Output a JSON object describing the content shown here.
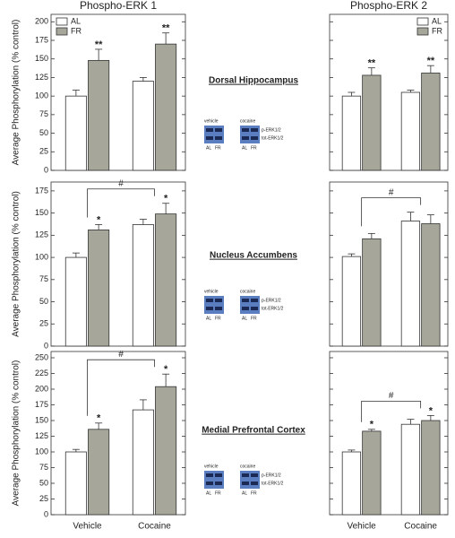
{
  "chart_data": [
    {
      "type": "bar",
      "title": "Phospho-ERK 1",
      "ylabel": "Average Phosphorylation (% control)",
      "ylim": [
        0,
        210
      ],
      "yticks": [
        0,
        25,
        50,
        75,
        100,
        125,
        150,
        175,
        200
      ],
      "ytick_labels": true,
      "legend": "upper left",
      "series": [
        {
          "name": "AL",
          "color": "#ffffff",
          "values": [
            100,
            120
          ],
          "errors": [
            8,
            5
          ]
        },
        {
          "name": "FR",
          "color": "#a6a69a",
          "values": [
            148,
            170
          ],
          "errors": [
            15,
            15
          ],
          "sig": [
            "**",
            "**"
          ]
        }
      ]
    },
    {
      "type": "bar",
      "title": "Phospho-ERK 2",
      "ylim": [
        0,
        210
      ],
      "yticks": [
        0,
        25,
        50,
        75,
        100,
        125,
        150,
        175,
        200
      ],
      "ytick_labels": false,
      "legend": "upper right",
      "series": [
        {
          "name": "AL",
          "color": "#ffffff",
          "values": [
            100,
            105
          ],
          "errors": [
            5,
            3
          ]
        },
        {
          "name": "FR",
          "color": "#a6a69a",
          "values": [
            128,
            131
          ],
          "errors": [
            10,
            10
          ],
          "sig": [
            "**",
            "**"
          ]
        }
      ]
    },
    {
      "type": "bar",
      "ylabel": "Average Phosphorylation (% control)",
      "ylim": [
        0,
        185
      ],
      "yticks": [
        0,
        25,
        50,
        75,
        100,
        125,
        150,
        175
      ],
      "ytick_labels": true,
      "bracket": "#",
      "series": [
        {
          "color": "#ffffff",
          "values": [
            100,
            137
          ],
          "errors": [
            5,
            6
          ]
        },
        {
          "color": "#a6a69a",
          "values": [
            131,
            149
          ],
          "errors": [
            6,
            12
          ],
          "sig": [
            "*",
            "*"
          ]
        }
      ]
    },
    {
      "type": "bar",
      "ylim": [
        0,
        185
      ],
      "yticks": [
        0,
        25,
        50,
        75,
        100,
        125,
        150,
        175
      ],
      "ytick_labels": false,
      "bracket": "#",
      "series": [
        {
          "color": "#ffffff",
          "values": [
            101,
            141
          ],
          "errors": [
            3,
            10
          ]
        },
        {
          "color": "#a6a69a",
          "values": [
            121,
            138
          ],
          "errors": [
            6,
            10
          ]
        }
      ]
    },
    {
      "type": "bar",
      "ylabel": "Average Phosphorylation (% control)",
      "categories": [
        "Vehicle",
        "Cocaine"
      ],
      "ylim": [
        0,
        260
      ],
      "yticks": [
        0,
        25,
        50,
        75,
        100,
        125,
        150,
        175,
        200,
        225,
        250
      ],
      "ytick_labels": true,
      "bracket": "#",
      "series": [
        {
          "color": "#ffffff",
          "values": [
            100,
            167
          ],
          "errors": [
            4,
            16
          ]
        },
        {
          "color": "#a6a69a",
          "values": [
            136,
            204
          ],
          "errors": [
            10,
            20
          ],
          "sig": [
            "*",
            "*"
          ]
        }
      ]
    },
    {
      "type": "bar",
      "categories": [
        "Vehicle",
        "Cocaine"
      ],
      "ylim": [
        0,
        260
      ],
      "yticks": [
        0,
        25,
        50,
        75,
        100,
        125,
        150,
        175,
        200,
        225,
        250
      ],
      "ytick_labels": false,
      "bracket": "#",
      "series": [
        {
          "color": "#ffffff",
          "values": [
            100,
            144
          ],
          "errors": [
            3,
            8
          ]
        },
        {
          "color": "#a6a69a",
          "values": [
            133,
            150
          ],
          "errors": [
            3,
            8
          ],
          "sig": [
            "*",
            "*"
          ]
        }
      ]
    }
  ],
  "regions": [
    "Dorsal Hippocampus",
    "Nucleus Accumbens",
    "Medial Prefrontal Cortex"
  ],
  "blots": [
    {
      "groups": [
        "vehicle",
        "cocaine"
      ],
      "bands": [
        "p-ERK1/2",
        "tot-ERK1/2"
      ],
      "lanes": [
        "AL",
        "FR"
      ]
    },
    {
      "groups": [
        "vehicle",
        "cocaine"
      ],
      "bands": [
        "p-ERK1/2",
        "tot-ERK1/2"
      ],
      "lanes": [
        "AL",
        "FR"
      ]
    },
    {
      "groups": [
        "vehicle",
        "cocaine"
      ],
      "bands": [
        "p-ERK1/2",
        "tot-ERK1/2"
      ],
      "lanes": [
        "AL",
        "FR"
      ]
    }
  ]
}
